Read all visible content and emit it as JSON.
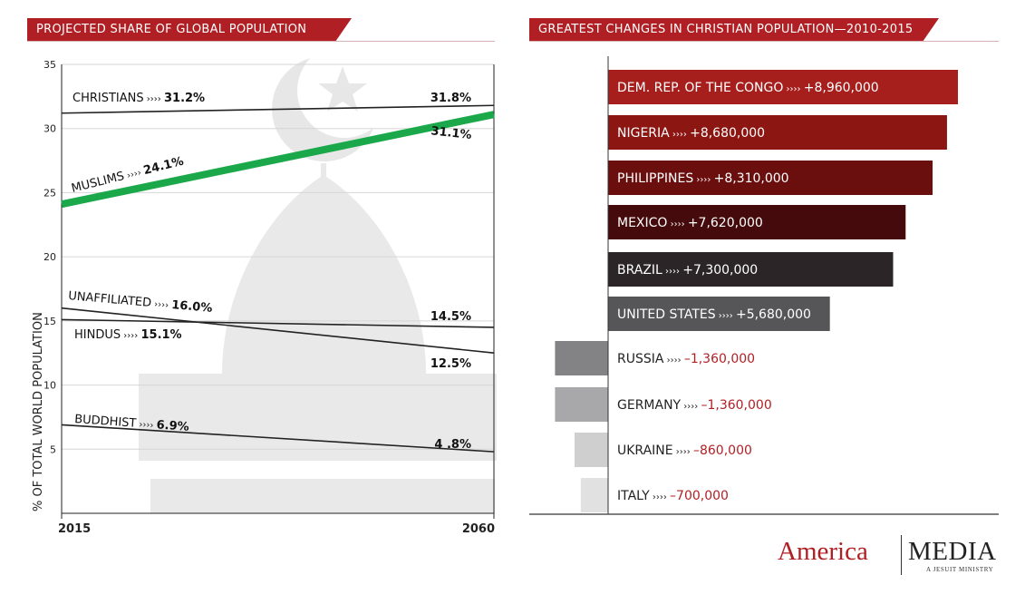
{
  "chart_data": [
    {
      "type": "line",
      "title": "PROJECTED SHARE OF GLOBAL POPULATION",
      "ylabel": "% OF TOTAL WORLD POPULATION",
      "xlabel": "",
      "x": [
        2015,
        2060
      ],
      "x_tick_labels": [
        "2015",
        "2060"
      ],
      "ylim": [
        0,
        35
      ],
      "y_ticks": [
        5,
        10,
        15,
        20,
        25,
        30,
        35
      ],
      "grid": true,
      "series": [
        {
          "name": "CHRISTIANS",
          "values": [
            31.2,
            31.8
          ],
          "start_label": "31.2%",
          "end_label": "31.8%",
          "color": "#222222"
        },
        {
          "name": "MUSLIMS",
          "values": [
            24.1,
            31.1
          ],
          "start_label": "24.1%",
          "end_label": "31.1%",
          "color": "#1aa84a"
        },
        {
          "name": "UNAFFILIATED",
          "values": [
            16.0,
            12.5
          ],
          "start_label": "16.0%",
          "end_label": "12.5%",
          "color": "#222222"
        },
        {
          "name": "HINDUS",
          "values": [
            15.1,
            14.5
          ],
          "start_label": "15.1%",
          "end_label": "14.5%",
          "color": "#222222"
        },
        {
          "name": "BUDDHIST",
          "values": [
            6.9,
            4.8
          ],
          "start_label": "6.9%",
          "end_label": "4 .8%",
          "color": "#222222"
        }
      ]
    },
    {
      "type": "bar",
      "orientation": "horizontal",
      "title": "GREATEST CHANGES IN CHRISTIAN POPULATION—2010-2015",
      "categories": [
        "DEM. REP. OF THE CONGO",
        "NIGERIA",
        "PHILIPPINES",
        "MEXICO",
        "BRAZIL",
        "UNITED STATES",
        "RUSSIA",
        "GERMANY",
        "UKRAINE",
        "ITALY"
      ],
      "values": [
        8960000,
        8680000,
        8310000,
        7620000,
        7300000,
        5680000,
        -1360000,
        -1360000,
        -860000,
        -700000
      ],
      "value_labels": [
        "+8,960,000",
        "+8,680,000",
        "+8,310,000",
        "+7,620,000",
        "+7,300,000",
        "+5,680,000",
        "–1,360,000",
        "–1,360,000",
        "–860,000",
        "–700,000"
      ],
      "colors": [
        "#a61f1d",
        "#8b1612",
        "#6b0e0e",
        "#450a0b",
        "#2b2527",
        "#565658",
        "#838385",
        "#a8a8aa",
        "#cfcfd0",
        "#e1e1e2"
      ],
      "separator": "››››"
    }
  ],
  "branding": {
    "name_part1": "America",
    "name_part2": "MEDIA",
    "tagline": "A JESUIT MINISTRY",
    "accent_color": "#b01f24"
  }
}
